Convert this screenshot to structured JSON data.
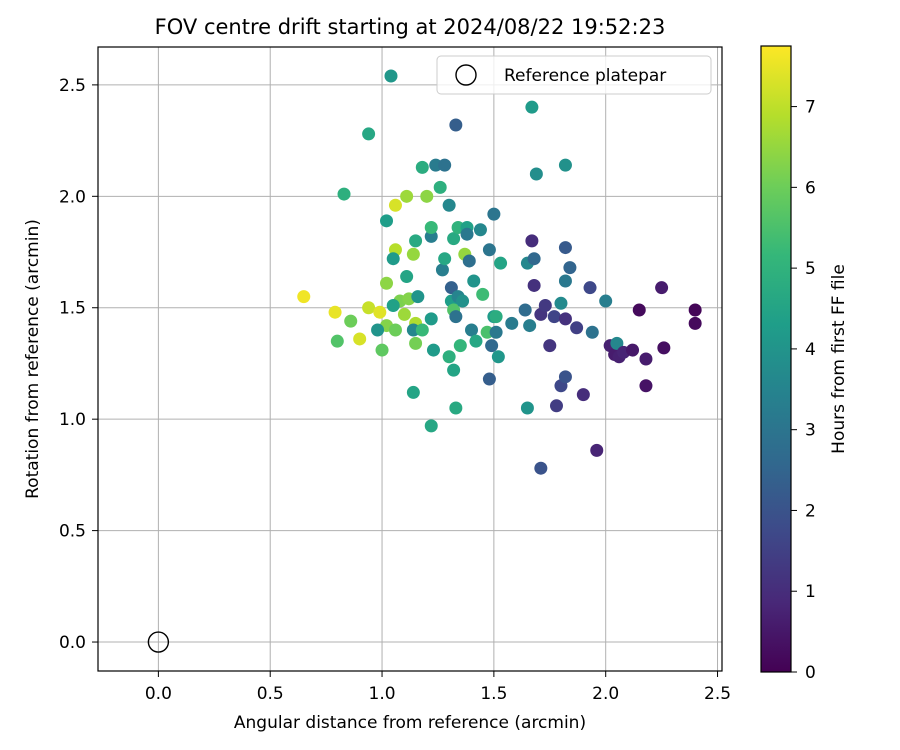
{
  "chart_data": {
    "type": "scatter",
    "title": "FOV centre drift starting at 2024/08/22 19:52:23",
    "xlabel": "Angular distance from reference (arcmin)",
    "ylabel": "Rotation from reference (arcmin)",
    "xlim": [
      -0.27,
      2.52
    ],
    "ylim": [
      -0.13,
      2.67
    ],
    "xticks": [
      0.0,
      0.5,
      1.0,
      1.5,
      2.0,
      2.5
    ],
    "xtick_labels": [
      "0.0",
      "0.5",
      "1.0",
      "1.5",
      "2.0",
      "2.5"
    ],
    "yticks": [
      0.0,
      0.5,
      1.0,
      1.5,
      2.0,
      2.5
    ],
    "ytick_labels": [
      "0.0",
      "0.5",
      "1.0",
      "1.5",
      "2.0",
      "2.5"
    ],
    "grid": true,
    "legend": {
      "placement": "upper right",
      "entries": [
        "Reference platepar"
      ]
    },
    "reference_point": {
      "x": 0.0,
      "y": 0.0,
      "marker": "open-circle",
      "color": "#000000"
    },
    "colorbar": {
      "label": "Hours from first FF file",
      "range": [
        0,
        7.75
      ],
      "ticks": [
        0,
        1,
        2,
        3,
        4,
        5,
        6,
        7
      ],
      "tick_labels": [
        "0",
        "1",
        "2",
        "3",
        "4",
        "5",
        "6",
        "7"
      ],
      "colormap": "viridis",
      "colors": [
        "#440154",
        "#482878",
        "#3e4989",
        "#31688e",
        "#26828e",
        "#1f9e89",
        "#35b779",
        "#6ece58",
        "#b5de2b",
        "#fde725"
      ]
    },
    "points": [
      {
        "x": 0.65,
        "y": 1.55,
        "t": 7.6
      },
      {
        "x": 0.79,
        "y": 1.48,
        "t": 7.5
      },
      {
        "x": 0.8,
        "y": 1.35,
        "t": 5.6
      },
      {
        "x": 0.86,
        "y": 1.44,
        "t": 6.0
      },
      {
        "x": 0.9,
        "y": 1.36,
        "t": 7.3
      },
      {
        "x": 0.94,
        "y": 1.5,
        "t": 7.1
      },
      {
        "x": 0.99,
        "y": 1.48,
        "t": 7.4
      },
      {
        "x": 1.0,
        "y": 1.31,
        "t": 5.8
      },
      {
        "x": 1.02,
        "y": 1.42,
        "t": 6.3
      },
      {
        "x": 1.02,
        "y": 1.61,
        "t": 6.4
      },
      {
        "x": 1.06,
        "y": 1.4,
        "t": 6.0
      },
      {
        "x": 1.08,
        "y": 1.53,
        "t": 6.2
      },
      {
        "x": 1.1,
        "y": 1.47,
        "t": 6.6
      },
      {
        "x": 1.12,
        "y": 1.54,
        "t": 6.3
      },
      {
        "x": 1.15,
        "y": 1.43,
        "t": 6.8
      },
      {
        "x": 1.14,
        "y": 1.74,
        "t": 6.5
      },
      {
        "x": 1.15,
        "y": 1.34,
        "t": 6.1
      },
      {
        "x": 1.06,
        "y": 1.76,
        "t": 6.9
      },
      {
        "x": 1.06,
        "y": 1.96,
        "t": 7.3
      },
      {
        "x": 1.11,
        "y": 2.0,
        "t": 6.6
      },
      {
        "x": 1.2,
        "y": 2.0,
        "t": 6.4
      },
      {
        "x": 0.83,
        "y": 2.01,
        "t": 4.9
      },
      {
        "x": 0.94,
        "y": 2.28,
        "t": 4.6
      },
      {
        "x": 1.04,
        "y": 2.54,
        "t": 4.1
      },
      {
        "x": 1.02,
        "y": 1.89,
        "t": 4.3
      },
      {
        "x": 1.05,
        "y": 1.72,
        "t": 4.2
      },
      {
        "x": 0.98,
        "y": 1.4,
        "t": 4.0
      },
      {
        "x": 1.05,
        "y": 1.51,
        "t": 4.4
      },
      {
        "x": 1.11,
        "y": 1.64,
        "t": 4.5
      },
      {
        "x": 1.14,
        "y": 1.4,
        "t": 3.6
      },
      {
        "x": 1.16,
        "y": 1.55,
        "t": 4.0
      },
      {
        "x": 1.15,
        "y": 1.8,
        "t": 4.7
      },
      {
        "x": 1.18,
        "y": 1.4,
        "t": 5.2
      },
      {
        "x": 1.18,
        "y": 2.13,
        "t": 4.8
      },
      {
        "x": 1.14,
        "y": 1.12,
        "t": 4.5
      },
      {
        "x": 1.22,
        "y": 0.97,
        "t": 4.6
      },
      {
        "x": 1.22,
        "y": 1.45,
        "t": 4.2
      },
      {
        "x": 1.23,
        "y": 1.31,
        "t": 4.2
      },
      {
        "x": 1.22,
        "y": 1.82,
        "t": 3.3
      },
      {
        "x": 1.22,
        "y": 1.86,
        "t": 5.2
      },
      {
        "x": 1.24,
        "y": 2.14,
        "t": 3.2
      },
      {
        "x": 1.26,
        "y": 2.04,
        "t": 4.9
      },
      {
        "x": 1.27,
        "y": 1.67,
        "t": 3.3
      },
      {
        "x": 1.28,
        "y": 1.72,
        "t": 4.6
      },
      {
        "x": 1.28,
        "y": 2.14,
        "t": 2.9
      },
      {
        "x": 1.3,
        "y": 1.28,
        "t": 4.9
      },
      {
        "x": 1.3,
        "y": 1.96,
        "t": 3.6
      },
      {
        "x": 1.31,
        "y": 1.59,
        "t": 2.4
      },
      {
        "x": 1.31,
        "y": 1.53,
        "t": 4.3
      },
      {
        "x": 1.32,
        "y": 1.22,
        "t": 4.5
      },
      {
        "x": 1.32,
        "y": 1.49,
        "t": 5.6
      },
      {
        "x": 1.32,
        "y": 1.81,
        "t": 4.7
      },
      {
        "x": 1.33,
        "y": 1.05,
        "t": 4.7
      },
      {
        "x": 1.33,
        "y": 1.46,
        "t": 2.9
      },
      {
        "x": 1.34,
        "y": 1.86,
        "t": 5.0
      },
      {
        "x": 1.34,
        "y": 1.55,
        "t": 3.5
      },
      {
        "x": 1.35,
        "y": 1.33,
        "t": 5.1
      },
      {
        "x": 1.36,
        "y": 1.53,
        "t": 3.9
      },
      {
        "x": 1.37,
        "y": 1.74,
        "t": 6.5
      },
      {
        "x": 1.38,
        "y": 1.86,
        "t": 4.4
      },
      {
        "x": 1.38,
        "y": 1.83,
        "t": 3.1
      },
      {
        "x": 1.33,
        "y": 2.32,
        "t": 2.3
      },
      {
        "x": 1.39,
        "y": 1.71,
        "t": 2.8
      },
      {
        "x": 1.4,
        "y": 1.4,
        "t": 3.3
      },
      {
        "x": 1.41,
        "y": 1.62,
        "t": 4.0
      },
      {
        "x": 1.42,
        "y": 1.35,
        "t": 4.6
      },
      {
        "x": 1.44,
        "y": 1.85,
        "t": 3.6
      },
      {
        "x": 1.45,
        "y": 1.56,
        "t": 5.3
      },
      {
        "x": 1.47,
        "y": 1.39,
        "t": 5.5
      },
      {
        "x": 1.48,
        "y": 1.18,
        "t": 2.3
      },
      {
        "x": 1.48,
        "y": 1.76,
        "t": 3.0
      },
      {
        "x": 1.49,
        "y": 1.33,
        "t": 2.6
      },
      {
        "x": 1.5,
        "y": 1.46,
        "t": 4.2
      },
      {
        "x": 1.5,
        "y": 1.92,
        "t": 3.0
      },
      {
        "x": 1.51,
        "y": 1.39,
        "t": 3.1
      },
      {
        "x": 1.51,
        "y": 1.46,
        "t": 4.8
      },
      {
        "x": 1.52,
        "y": 1.28,
        "t": 4.1
      },
      {
        "x": 1.53,
        "y": 1.7,
        "t": 4.5
      },
      {
        "x": 1.58,
        "y": 1.43,
        "t": 3.2
      },
      {
        "x": 1.64,
        "y": 1.49,
        "t": 2.7
      },
      {
        "x": 1.65,
        "y": 1.05,
        "t": 4.0
      },
      {
        "x": 1.65,
        "y": 1.7,
        "t": 3.6
      },
      {
        "x": 1.66,
        "y": 1.42,
        "t": 3.3
      },
      {
        "x": 1.67,
        "y": 2.4,
        "t": 4.2
      },
      {
        "x": 1.67,
        "y": 1.8,
        "t": 1.0
      },
      {
        "x": 1.68,
        "y": 1.6,
        "t": 1.1
      },
      {
        "x": 1.68,
        "y": 1.72,
        "t": 2.6
      },
      {
        "x": 1.69,
        "y": 2.1,
        "t": 3.8
      },
      {
        "x": 1.71,
        "y": 0.78,
        "t": 2.0
      },
      {
        "x": 1.71,
        "y": 1.47,
        "t": 1.2
      },
      {
        "x": 1.73,
        "y": 1.51,
        "t": 1.3
      },
      {
        "x": 1.75,
        "y": 1.33,
        "t": 1.2
      },
      {
        "x": 1.77,
        "y": 1.46,
        "t": 1.6
      },
      {
        "x": 1.78,
        "y": 1.06,
        "t": 1.4
      },
      {
        "x": 1.8,
        "y": 1.52,
        "t": 3.7
      },
      {
        "x": 1.8,
        "y": 1.15,
        "t": 1.7
      },
      {
        "x": 1.82,
        "y": 1.45,
        "t": 1.1
      },
      {
        "x": 1.82,
        "y": 1.77,
        "t": 2.2
      },
      {
        "x": 1.82,
        "y": 1.62,
        "t": 3.1
      },
      {
        "x": 1.82,
        "y": 2.14,
        "t": 3.9
      },
      {
        "x": 1.82,
        "y": 1.19,
        "t": 2.0
      },
      {
        "x": 1.84,
        "y": 1.68,
        "t": 2.5
      },
      {
        "x": 1.87,
        "y": 1.41,
        "t": 1.5
      },
      {
        "x": 1.9,
        "y": 1.11,
        "t": 1.0
      },
      {
        "x": 1.93,
        "y": 1.59,
        "t": 1.7
      },
      {
        "x": 1.94,
        "y": 1.39,
        "t": 2.9
      },
      {
        "x": 1.96,
        "y": 0.86,
        "t": 0.8
      },
      {
        "x": 2.0,
        "y": 1.53,
        "t": 3.3
      },
      {
        "x": 2.02,
        "y": 1.33,
        "t": 0.7
      },
      {
        "x": 2.04,
        "y": 1.29,
        "t": 0.6
      },
      {
        "x": 2.05,
        "y": 1.34,
        "t": 3.6
      },
      {
        "x": 2.06,
        "y": 1.28,
        "t": 0.7
      },
      {
        "x": 2.08,
        "y": 1.3,
        "t": 0.8
      },
      {
        "x": 2.12,
        "y": 1.31,
        "t": 0.5
      },
      {
        "x": 2.15,
        "y": 1.49,
        "t": 0.2
      },
      {
        "x": 2.18,
        "y": 1.27,
        "t": 0.6
      },
      {
        "x": 2.18,
        "y": 1.15,
        "t": 0.4
      },
      {
        "x": 2.25,
        "y": 1.59,
        "t": 0.6
      },
      {
        "x": 2.26,
        "y": 1.32,
        "t": 0.3
      },
      {
        "x": 2.4,
        "y": 1.49,
        "t": 0.1
      },
      {
        "x": 2.4,
        "y": 1.43,
        "t": 0.2
      }
    ]
  }
}
